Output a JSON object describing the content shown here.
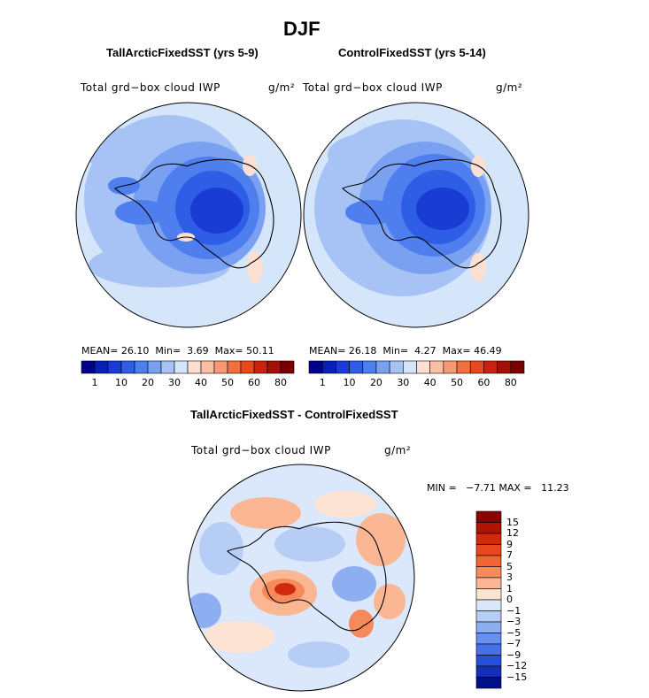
{
  "figure": {
    "title": "DJF",
    "panels": [
      {
        "subtitle": "TallArcticFixedSST (yrs 5-9)",
        "variable": "Total grd−box cloud IWP",
        "units": "g/m²",
        "mean_label": "MEAN=",
        "mean": "26.10",
        "min_label": "Min=",
        "min": "3.69",
        "max_label": "Max=",
        "max": "50.11"
      },
      {
        "subtitle": "ControlFixedSST (yrs 5-14)",
        "variable": "Total grd−box cloud IWP",
        "units": "g/m²",
        "mean_label": "MEAN=",
        "mean": "26.18",
        "min_label": "Min=",
        "min": "4.27",
        "max_label": "Max=",
        "max": "46.49"
      }
    ],
    "diff": {
      "subtitle": "TallArcticFixedSST - ControlFixedSST",
      "variable": "Total grd−box cloud IWP",
      "units": "g/m²",
      "minmax": "MIN =   −7.71 MAX =   11.23"
    },
    "abs_colorbar": {
      "ticks": [
        "1",
        "10",
        "20",
        "30",
        "40",
        "50",
        "60",
        "80"
      ],
      "colors": [
        "#00008b",
        "#0a1fb4",
        "#1a3cd4",
        "#2f5ee6",
        "#4f7eef",
        "#7aa0f2",
        "#a7c3f5",
        "#d6e6fa",
        "#fde0d2",
        "#fbbfa3",
        "#f79a74",
        "#f2703f",
        "#e64a1c",
        "#c8230f",
        "#a01208",
        "#780000"
      ]
    },
    "diff_colorbar": {
      "ticks": [
        "15",
        "12",
        "9",
        "7",
        "5",
        "3",
        "1",
        "0",
        "−1",
        "−3",
        "−5",
        "−7",
        "−9",
        "−12",
        "−15"
      ],
      "colors": [
        "#8b0000",
        "#b01204",
        "#d02a0c",
        "#e8461c",
        "#f26532",
        "#f78a5a",
        "#fbb693",
        "#fde3d3",
        "#dbe8fb",
        "#b6cdf6",
        "#8eaef2",
        "#6890ee",
        "#4470e8",
        "#2650d8",
        "#1230b8",
        "#00108b"
      ]
    }
  }
}
